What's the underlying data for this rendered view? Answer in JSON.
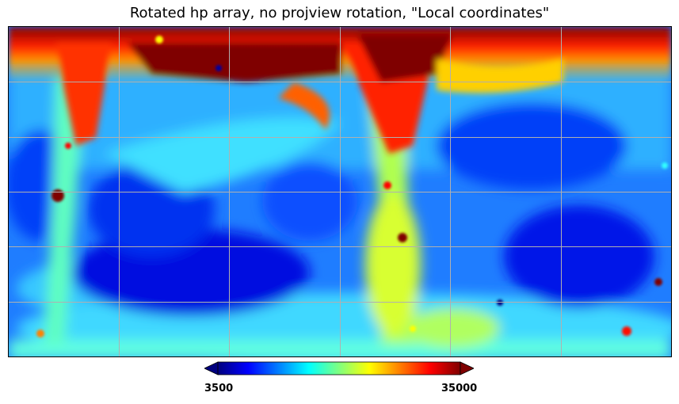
{
  "title": "Rotated hp array, no projview rotation, \"Local coordinates\"",
  "colorbar": {
    "min_label": "3500",
    "max_label": "35000",
    "colormap": "jet",
    "extend": "both"
  },
  "map": {
    "projection": "cartesian",
    "graticule": true,
    "graticule_color": "#b0b0b0"
  },
  "colors": {
    "jet_stops": [
      "#00007f",
      "#0000ff",
      "#007fff",
      "#00ffff",
      "#7fff7f",
      "#ffff00",
      "#ff7f00",
      "#ff0000",
      "#7f0000"
    ]
  }
}
